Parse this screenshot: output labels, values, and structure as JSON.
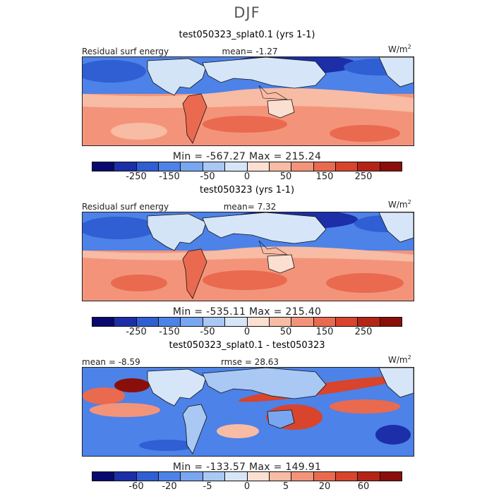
{
  "season": "DJF",
  "panels": [
    {
      "title": "test050323_splat0.1 (yrs 1-1)",
      "left_header": "Residual surf energy",
      "center_header": "mean=   -1.27",
      "unit": "W/m",
      "unit_sup": "2",
      "minmax": "Min = -567.27  Max = 215.24",
      "colorbar_ticks": [
        "-250",
        "-150",
        "-50",
        "0",
        "50",
        "150",
        "250"
      ]
    },
    {
      "title": "test050323 (yrs 1-1)",
      "left_header": "Residual surf energy",
      "center_header": "mean=    7.32",
      "unit": "W/m",
      "unit_sup": "2",
      "minmax": "Min = -535.11  Max = 215.40",
      "colorbar_ticks": [
        "-250",
        "-150",
        "-50",
        "0",
        "50",
        "150",
        "250"
      ]
    },
    {
      "title": "test050323_splat0.1 - test050323",
      "left_header": "mean =  -8.59",
      "center_header": "rmse =  28.63",
      "unit": "W/m",
      "unit_sup": "2",
      "minmax": "Min = -133.57  Max = 149.91",
      "colorbar_ticks": [
        "-60",
        "-20",
        "-5",
        "0",
        "5",
        "20",
        "60"
      ]
    }
  ],
  "colors": {
    "colorbar": [
      "#08086e",
      "#1c2ea8",
      "#2f5fd2",
      "#4d82e8",
      "#79a6f0",
      "#a9c8f4",
      "#d6e6f8",
      "#fbe0d2",
      "#f8bba4",
      "#f3947a",
      "#ea6a4f",
      "#d8442c",
      "#b42518",
      "#8a0f0a"
    ],
    "land": "#d3e4f6",
    "ocean_cool": "#4d82e8",
    "ocean_warm": "#f3947a"
  }
}
